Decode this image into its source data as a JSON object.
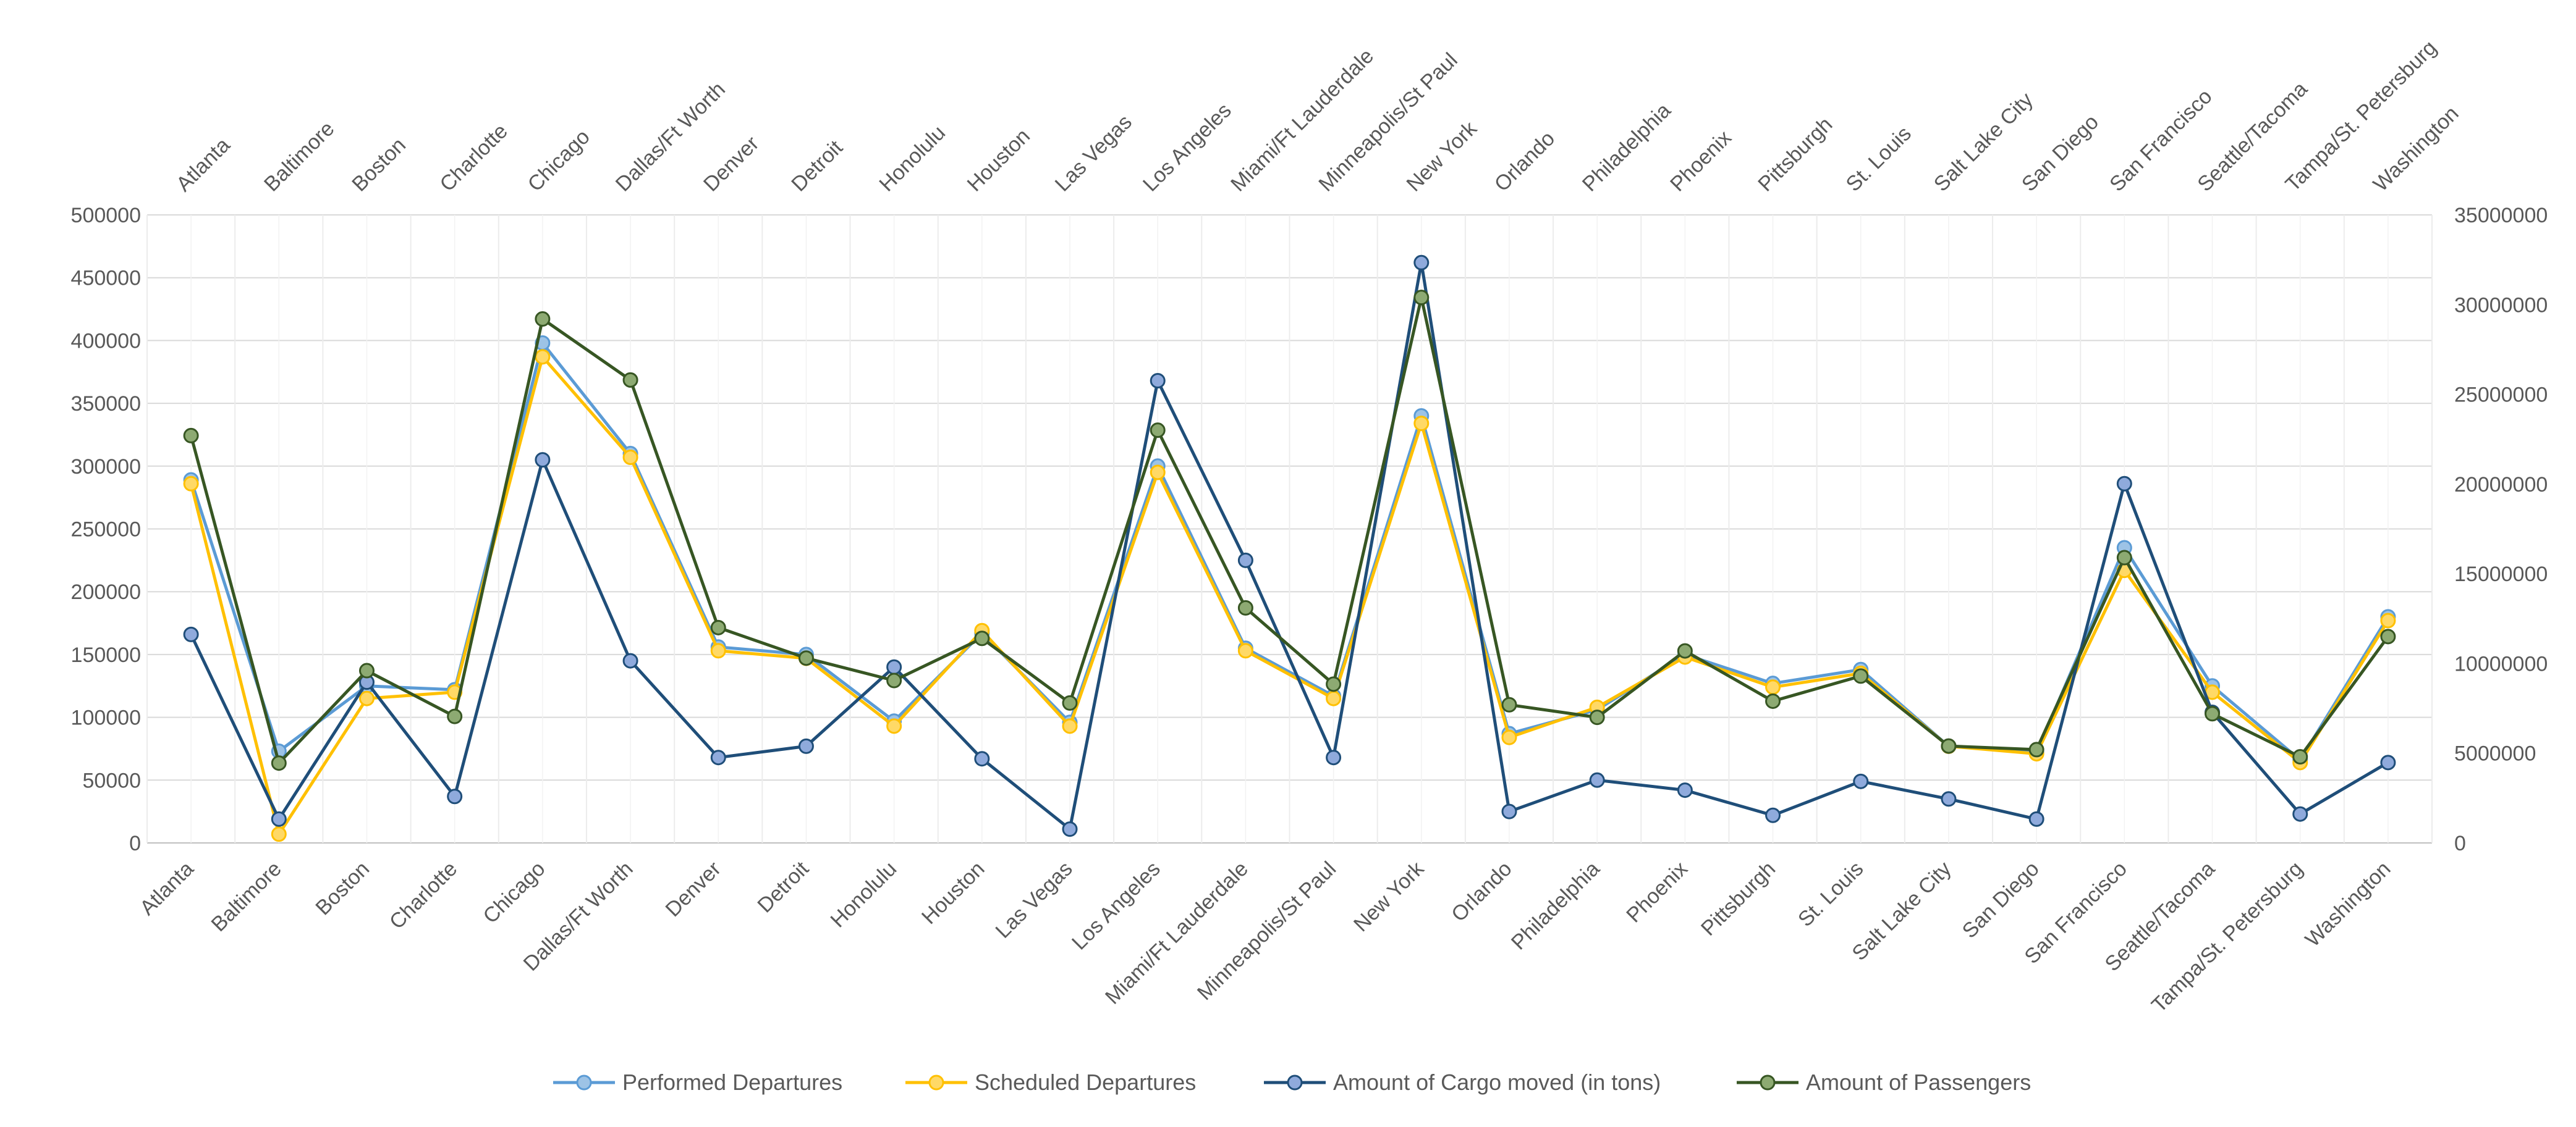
{
  "chart_data": {
    "type": "line",
    "categories": [
      "Atlanta",
      "Baltimore",
      "Boston",
      "Charlotte",
      "Chicago",
      "Dallas/Ft Worth",
      "Denver",
      "Detroit",
      "Honolulu",
      "Houston",
      "Las Vegas",
      "Los Angeles",
      "Miami/Ft Lauderdale",
      "Minneapolis/St Paul",
      "New York",
      "Orlando",
      "Philadelphia",
      "Phoenix",
      "Pittsburgh",
      "St. Louis",
      "Salt Lake City",
      "San Diego",
      "San Francisco",
      "Seattle/Tacoma",
      "Tampa/St. Petersburg",
      "Washington"
    ],
    "y_left": {
      "min": 0,
      "max": 500000,
      "step": 50000,
      "ticks": [
        "0",
        "50000",
        "100000",
        "150000",
        "200000",
        "250000",
        "300000",
        "350000",
        "400000",
        "450000",
        "500000"
      ]
    },
    "y_right": {
      "min": 0,
      "max": 35000000,
      "step": 5000000,
      "ticks": [
        "0",
        "5000000",
        "10000000",
        "15000000",
        "20000000",
        "25000000",
        "30000000",
        "35000000"
      ]
    },
    "grid": true,
    "legend_position": "bottom",
    "series": [
      {
        "name": "Performed Departures",
        "axis": "left",
        "color": "#5B9BD5",
        "marker_fill": "#9DC3E6",
        "values": [
          289000,
          73000,
          125000,
          122000,
          398000,
          310000,
          156000,
          150000,
          97000,
          167000,
          96000,
          300000,
          155000,
          117000,
          340000,
          87000,
          106000,
          150000,
          127000,
          138000,
          77000,
          72000,
          235000,
          125000,
          66000,
          180000
        ]
      },
      {
        "name": "Scheduled Departures",
        "axis": "left",
        "color": "#FFC000",
        "marker_fill": "#FFD966",
        "values": [
          286000,
          7000,
          115000,
          120000,
          387000,
          307000,
          153000,
          147000,
          93000,
          169000,
          93000,
          295000,
          153000,
          115000,
          334000,
          84000,
          108000,
          148000,
          124000,
          135000,
          77000,
          71000,
          217000,
          120000,
          64000,
          177000
        ]
      },
      {
        "name": "Amount of Cargo moved (in tons)",
        "axis": "left",
        "color": "#1F4E79",
        "marker_fill": "#8FAADC",
        "values": [
          166000,
          19000,
          128000,
          37000,
          305000,
          145000,
          68000,
          77000,
          140000,
          67000,
          11000,
          368000,
          225000,
          68000,
          462000,
          25000,
          50000,
          42000,
          22000,
          49000,
          35000,
          19000,
          286000,
          104000,
          23000,
          64000
        ]
      },
      {
        "name": "Amount of Passengers",
        "axis": "right",
        "color": "#375623",
        "marker_fill": "#8DAA72",
        "values": [
          22700000,
          4450000,
          9600000,
          7050000,
          29200000,
          25800000,
          12000000,
          10300000,
          9050000,
          11400000,
          7800000,
          23000000,
          13100000,
          8850000,
          30400000,
          7700000,
          7000000,
          10700000,
          7900000,
          9300000,
          5400000,
          5200000,
          15900000,
          7200000,
          4800000,
          11500000
        ]
      }
    ]
  }
}
